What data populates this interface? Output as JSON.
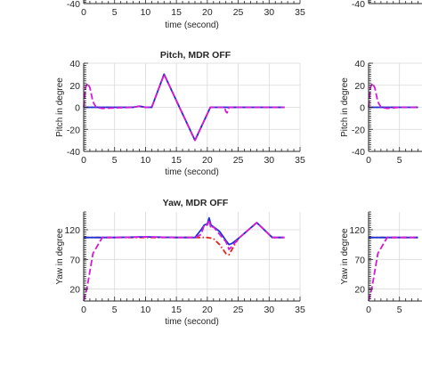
{
  "colors": {
    "red": "#e8201a",
    "blue": "#1a33d6",
    "magenta": "#d61ad6",
    "axis": "#262626",
    "grid": "#d9d9d9"
  },
  "chart_data": [
    {
      "type": "line",
      "title": "",
      "xlabel": "time (second)",
      "ylabel": "",
      "xlim": [
        0,
        35
      ],
      "ylim": [
        -40,
        40
      ],
      "xticks": [
        "0",
        "5",
        "10",
        "15",
        "20",
        "25",
        "30",
        "35"
      ],
      "yticks": [
        "-40"
      ],
      "grid": true,
      "series": []
    },
    {
      "type": "line",
      "title": "Pitch, MDR OFF",
      "xlabel": "time (second)",
      "ylabel": "Pitch in degree",
      "xlim": [
        0,
        35
      ],
      "ylim": [
        -40,
        40
      ],
      "xticks": [
        "0",
        "5",
        "10",
        "15",
        "20",
        "25",
        "30",
        "35"
      ],
      "yticks": [
        "40",
        "20",
        "0",
        "-20",
        "-40"
      ],
      "grid": true,
      "series": [
        {
          "color": "red",
          "style": "dashdot",
          "x": [
            0,
            8,
            9,
            10,
            11,
            13,
            15.5,
            18,
            20.5,
            21,
            22,
            23,
            25,
            30,
            32.5
          ],
          "y": [
            0,
            0,
            1,
            0,
            0,
            30,
            0,
            -30,
            0,
            0,
            0,
            0,
            0,
            0,
            0
          ]
        },
        {
          "color": "blue",
          "style": "solid",
          "x": [
            0,
            8,
            9,
            10,
            11,
            13,
            15.5,
            18,
            20.5,
            21,
            22,
            23,
            25,
            30,
            32.5
          ],
          "y": [
            0,
            0,
            1,
            0,
            0,
            30,
            0,
            -30,
            0,
            0,
            0,
            0,
            0,
            0,
            0
          ]
        },
        {
          "color": "magenta",
          "style": "dashed",
          "x": [
            0,
            0.3,
            0.6,
            1,
            1.5,
            2,
            3,
            8,
            9,
            10,
            11,
            13,
            15.5,
            18,
            20.5,
            21,
            22,
            22.8,
            23,
            23.2,
            23.5,
            25,
            30,
            32.5
          ],
          "y": [
            0,
            18,
            22,
            18,
            5,
            0,
            -1,
            0,
            1,
            0,
            0,
            30,
            0,
            -30,
            0,
            0,
            0,
            0,
            -4,
            -5,
            0,
            0,
            0,
            0
          ]
        }
      ]
    },
    {
      "type": "line",
      "title": "Yaw, MDR OFF",
      "xlabel": "time (second)",
      "ylabel": "Yaw in degree",
      "xlim": [
        0,
        35
      ],
      "ylim": [
        0,
        150
      ],
      "xticks": [
        "0",
        "5",
        "10",
        "15",
        "20",
        "25",
        "30",
        "35"
      ],
      "yticks": [
        "120",
        "70",
        "20"
      ],
      "grid": true,
      "series": [
        {
          "color": "red",
          "style": "dashdot",
          "x": [
            0,
            5,
            10,
            15,
            18,
            20,
            21,
            22,
            23,
            23.5,
            25,
            28,
            30.5,
            32.5
          ],
          "y": [
            107,
            107,
            107,
            107,
            107,
            107,
            105,
            95,
            80,
            78,
            105,
            132,
            107,
            107
          ]
        },
        {
          "color": "blue",
          "style": "solid",
          "x": [
            0,
            5,
            10,
            15,
            18,
            19,
            19.5,
            20,
            20.3,
            20.6,
            21,
            22,
            23,
            23.5,
            24,
            25,
            28,
            30.5,
            32.5
          ],
          "y": [
            107,
            107,
            108,
            107,
            107,
            120,
            128,
            130,
            140,
            128,
            125,
            117,
            102,
            95,
            97,
            105,
            132,
            107,
            107
          ]
        },
        {
          "color": "magenta",
          "style": "dashed",
          "x": [
            0,
            0.5,
            1.5,
            3,
            5,
            10,
            15,
            18,
            19,
            19.5,
            20,
            20.3,
            20.6,
            21,
            22,
            23,
            23.5,
            24,
            25,
            28,
            30.5,
            32.5
          ],
          "y": [
            0,
            20,
            80,
            107,
            107,
            108,
            107,
            107,
            112,
            128,
            128,
            137,
            122,
            125,
            112,
            100,
            87,
            92,
            105,
            132,
            107,
            107
          ]
        }
      ]
    },
    {
      "type": "line",
      "title": "",
      "xlabel": "",
      "ylabel": "",
      "xlim": [
        0,
        35
      ],
      "ylim": [
        -40,
        40
      ],
      "xticks": [],
      "yticks": [
        "-40"
      ],
      "grid": true,
      "series": []
    },
    {
      "type": "line",
      "title": "",
      "xlabel": "",
      "ylabel": "Pitch in degree",
      "xlim": [
        0,
        35
      ],
      "ylim": [
        -40,
        40
      ],
      "xticks": [
        "0",
        "5"
      ],
      "yticks": [
        "40",
        "20",
        "0",
        "-20",
        "-40"
      ],
      "grid": true,
      "series": [
        {
          "color": "red",
          "style": "dashdot",
          "x": [
            0,
            2,
            5,
            8
          ],
          "y": [
            0,
            0,
            0,
            0
          ]
        },
        {
          "color": "blue",
          "style": "solid",
          "x": [
            0,
            2,
            5,
            8
          ],
          "y": [
            0,
            0,
            0,
            0
          ]
        },
        {
          "color": "magenta",
          "style": "dashed",
          "x": [
            0,
            0.3,
            0.6,
            1,
            1.5,
            2,
            3,
            5,
            8
          ],
          "y": [
            0,
            18,
            22,
            18,
            5,
            0,
            -1,
            0,
            0
          ]
        }
      ]
    },
    {
      "type": "line",
      "title": "",
      "xlabel": "",
      "ylabel": "Yaw in degree",
      "xlim": [
        0,
        35
      ],
      "ylim": [
        0,
        150
      ],
      "xticks": [
        "0",
        "5"
      ],
      "yticks": [
        "120",
        "70",
        "20"
      ],
      "grid": true,
      "series": [
        {
          "color": "red",
          "style": "dashdot",
          "x": [
            0,
            2,
            5,
            8
          ],
          "y": [
            107,
            107,
            107,
            107
          ]
        },
        {
          "color": "blue",
          "style": "solid",
          "x": [
            0,
            2,
            5,
            8
          ],
          "y": [
            107,
            107,
            107,
            107
          ]
        },
        {
          "color": "magenta",
          "style": "dashed",
          "x": [
            0,
            0.5,
            1.5,
            3,
            5,
            8
          ],
          "y": [
            0,
            20,
            80,
            107,
            107,
            107
          ]
        }
      ]
    }
  ]
}
